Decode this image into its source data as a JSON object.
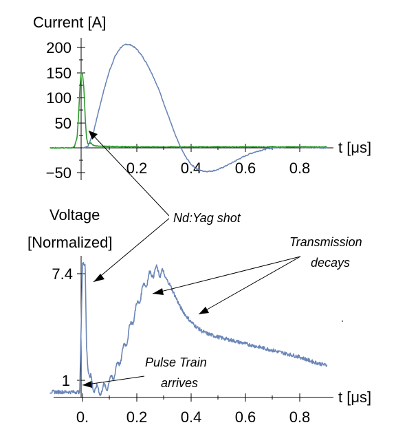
{
  "chart_data": [
    {
      "type": "line",
      "ylabel": "Current [A]",
      "xlabel": "t [μs]",
      "x_ticks": [
        "0.2",
        "0.4",
        "0.6",
        "0.8"
      ],
      "y_ticks": [
        "200",
        "150",
        "100",
        "50",
        "−50"
      ],
      "xlim": [
        -0.12,
        0.9
      ],
      "ylim": [
        -65,
        215
      ],
      "colors": {
        "series_blue": "#6a86b8",
        "series_green": "#2f9a2f"
      },
      "series": [
        {
          "x": [
            0.0,
            0.02,
            0.04,
            0.06,
            0.08,
            0.1,
            0.12,
            0.14,
            0.16,
            0.18,
            0.2,
            0.22,
            0.24,
            0.26,
            0.28,
            0.3,
            0.32,
            0.34,
            0.36,
            0.38,
            0.4,
            0.42,
            0.44,
            0.46,
            0.48,
            0.5,
            0.52,
            0.55,
            0.58,
            0.6,
            0.62,
            0.65,
            0.68,
            0.7,
            0.72,
            0.75,
            0.78,
            0.8,
            0.82,
            0.85,
            0.88,
            0.9
          ],
          "y": [
            0,
            3,
            30,
            75,
            118,
            155,
            183,
            200,
            207,
            205,
            197,
            183,
            165,
            143,
            118,
            88,
            58,
            28,
            2,
            -18,
            -33,
            -42,
            -46,
            -47,
            -46,
            -43,
            -38,
            -30,
            -21,
            -16,
            -11,
            -6,
            -2,
            0,
            1,
            2,
            2,
            2,
            1,
            1,
            0,
            0
          ]
        },
        {
          "x": [
            -0.12,
            -0.04,
            -0.03,
            -0.02,
            -0.015,
            -0.01,
            -0.005,
            0.0,
            0.005,
            0.01,
            0.015,
            0.02,
            0.03,
            0.04,
            0.06,
            0.1,
            0.2,
            0.4,
            0.6,
            0.8,
            0.9
          ],
          "y": [
            0,
            0,
            2,
            20,
            60,
            115,
            150,
            148,
            120,
            60,
            20,
            8,
            10,
            5,
            3,
            3,
            2,
            2,
            2,
            2,
            2
          ]
        }
      ]
    },
    {
      "type": "line",
      "ylabel": "Voltage [Normalized]",
      "xlabel": "t [μs]",
      "x_ticks": [
        "0.",
        "0.2",
        "0.4",
        "0.6",
        "0.8"
      ],
      "y_ticks": [
        "7.4",
        "1"
      ],
      "xlim": [
        -0.12,
        0.9
      ],
      "ylim": [
        0.2,
        8.2
      ],
      "colors": {
        "series_blue": "#6a86b8"
      },
      "series": [
        {
          "x": [
            -0.12,
            -0.01,
            0.0,
            0.005,
            0.01,
            0.015,
            0.02,
            0.04,
            0.06,
            0.08,
            0.1,
            0.12,
            0.14,
            0.16,
            0.18,
            0.2,
            0.22,
            0.24,
            0.26,
            0.28,
            0.3,
            0.32,
            0.34,
            0.36,
            0.38,
            0.4,
            0.42,
            0.44,
            0.46,
            0.48,
            0.5,
            0.55,
            0.6,
            0.65,
            0.7,
            0.75,
            0.8,
            0.85,
            0.9
          ],
          "y": [
            0.3,
            0.3,
            8.0,
            8.0,
            8.0,
            3.0,
            1.6,
            0.6,
            0.35,
            0.5,
            0.9,
            1.5,
            2.3,
            3.3,
            4.4,
            5.4,
            6.4,
            7.1,
            7.5,
            7.6,
            7.3,
            6.8,
            6.1,
            5.4,
            4.9,
            4.5,
            4.2,
            3.95,
            3.8,
            3.7,
            3.6,
            3.4,
            3.2,
            3.0,
            2.8,
            2.6,
            2.4,
            2.1,
            1.9
          ]
        }
      ]
    }
  ],
  "annotations": {
    "nd_yag": "Nd:Yag shot",
    "transmission_line1": "Transmission",
    "transmission_line2": "decays",
    "pulse_line1": "Pulse Train",
    "pulse_line2": "arrives"
  },
  "top_ylabel": "Current [A]",
  "bottom_ylabel_line1": "Voltage",
  "bottom_ylabel_line2": "[Normalized]"
}
